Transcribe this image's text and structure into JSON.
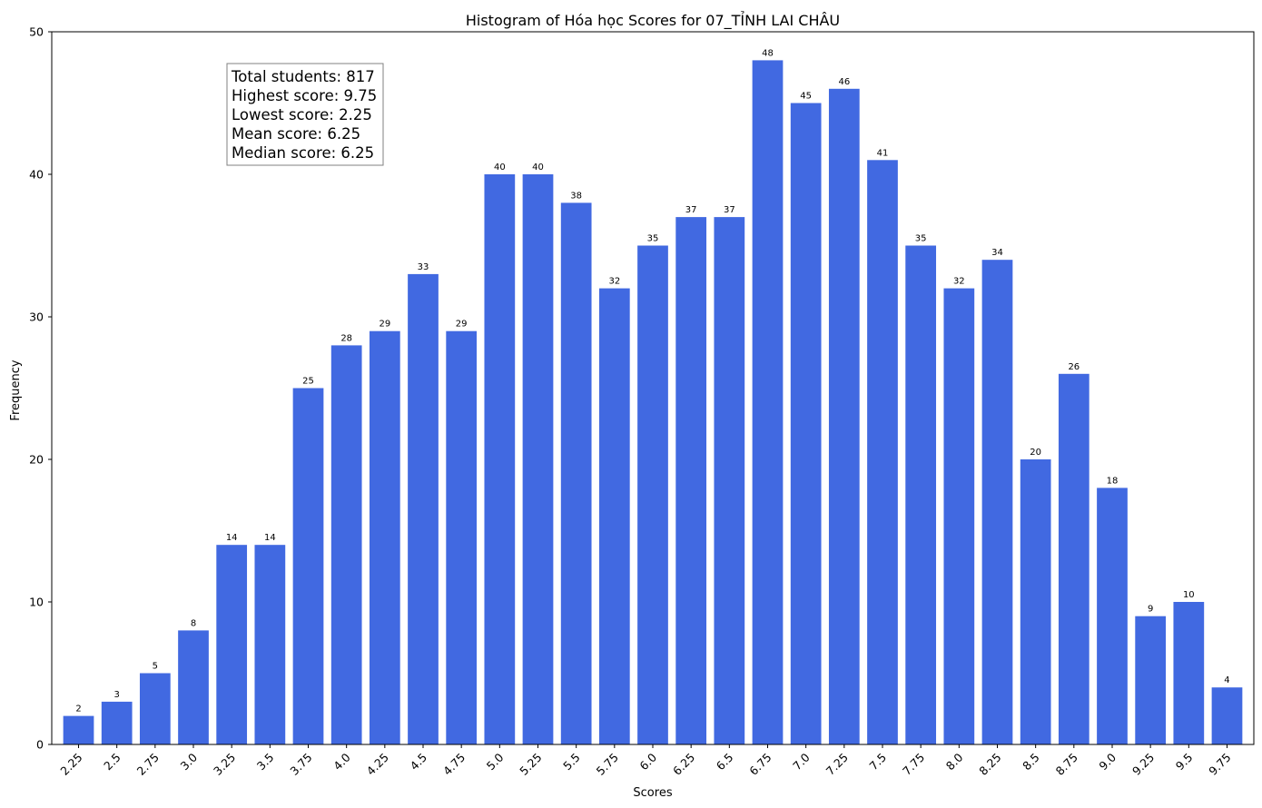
{
  "chart_data": {
    "type": "bar",
    "title": "Histogram of Hóa học Scores for 07_TỈNH LAI CHÂU",
    "xlabel": "Scores",
    "ylabel": "Frequency",
    "ylim": [
      0,
      50
    ],
    "yticks": [
      0,
      10,
      20,
      30,
      40,
      50
    ],
    "categories": [
      "2.25",
      "2.5",
      "2.75",
      "3.0",
      "3.25",
      "3.5",
      "3.75",
      "4.0",
      "4.25",
      "4.5",
      "4.75",
      "5.0",
      "5.25",
      "5.5",
      "5.75",
      "6.0",
      "6.25",
      "6.5",
      "6.75",
      "7.0",
      "7.25",
      "7.5",
      "7.75",
      "8.0",
      "8.25",
      "8.5",
      "8.75",
      "9.0",
      "9.25",
      "9.5",
      "9.75"
    ],
    "values": [
      2,
      3,
      5,
      8,
      14,
      14,
      25,
      28,
      29,
      33,
      29,
      40,
      40,
      38,
      32,
      35,
      37,
      37,
      48,
      45,
      46,
      41,
      35,
      32,
      34,
      20,
      26,
      18,
      9,
      10,
      4
    ],
    "bar_color": "#4169e1",
    "grid": false,
    "stats_box": {
      "lines": [
        "Total students: 817",
        "Highest score: 9.75",
        "Lowest score: 2.25",
        "Mean score: 6.25",
        "Median score: 6.25"
      ]
    }
  }
}
